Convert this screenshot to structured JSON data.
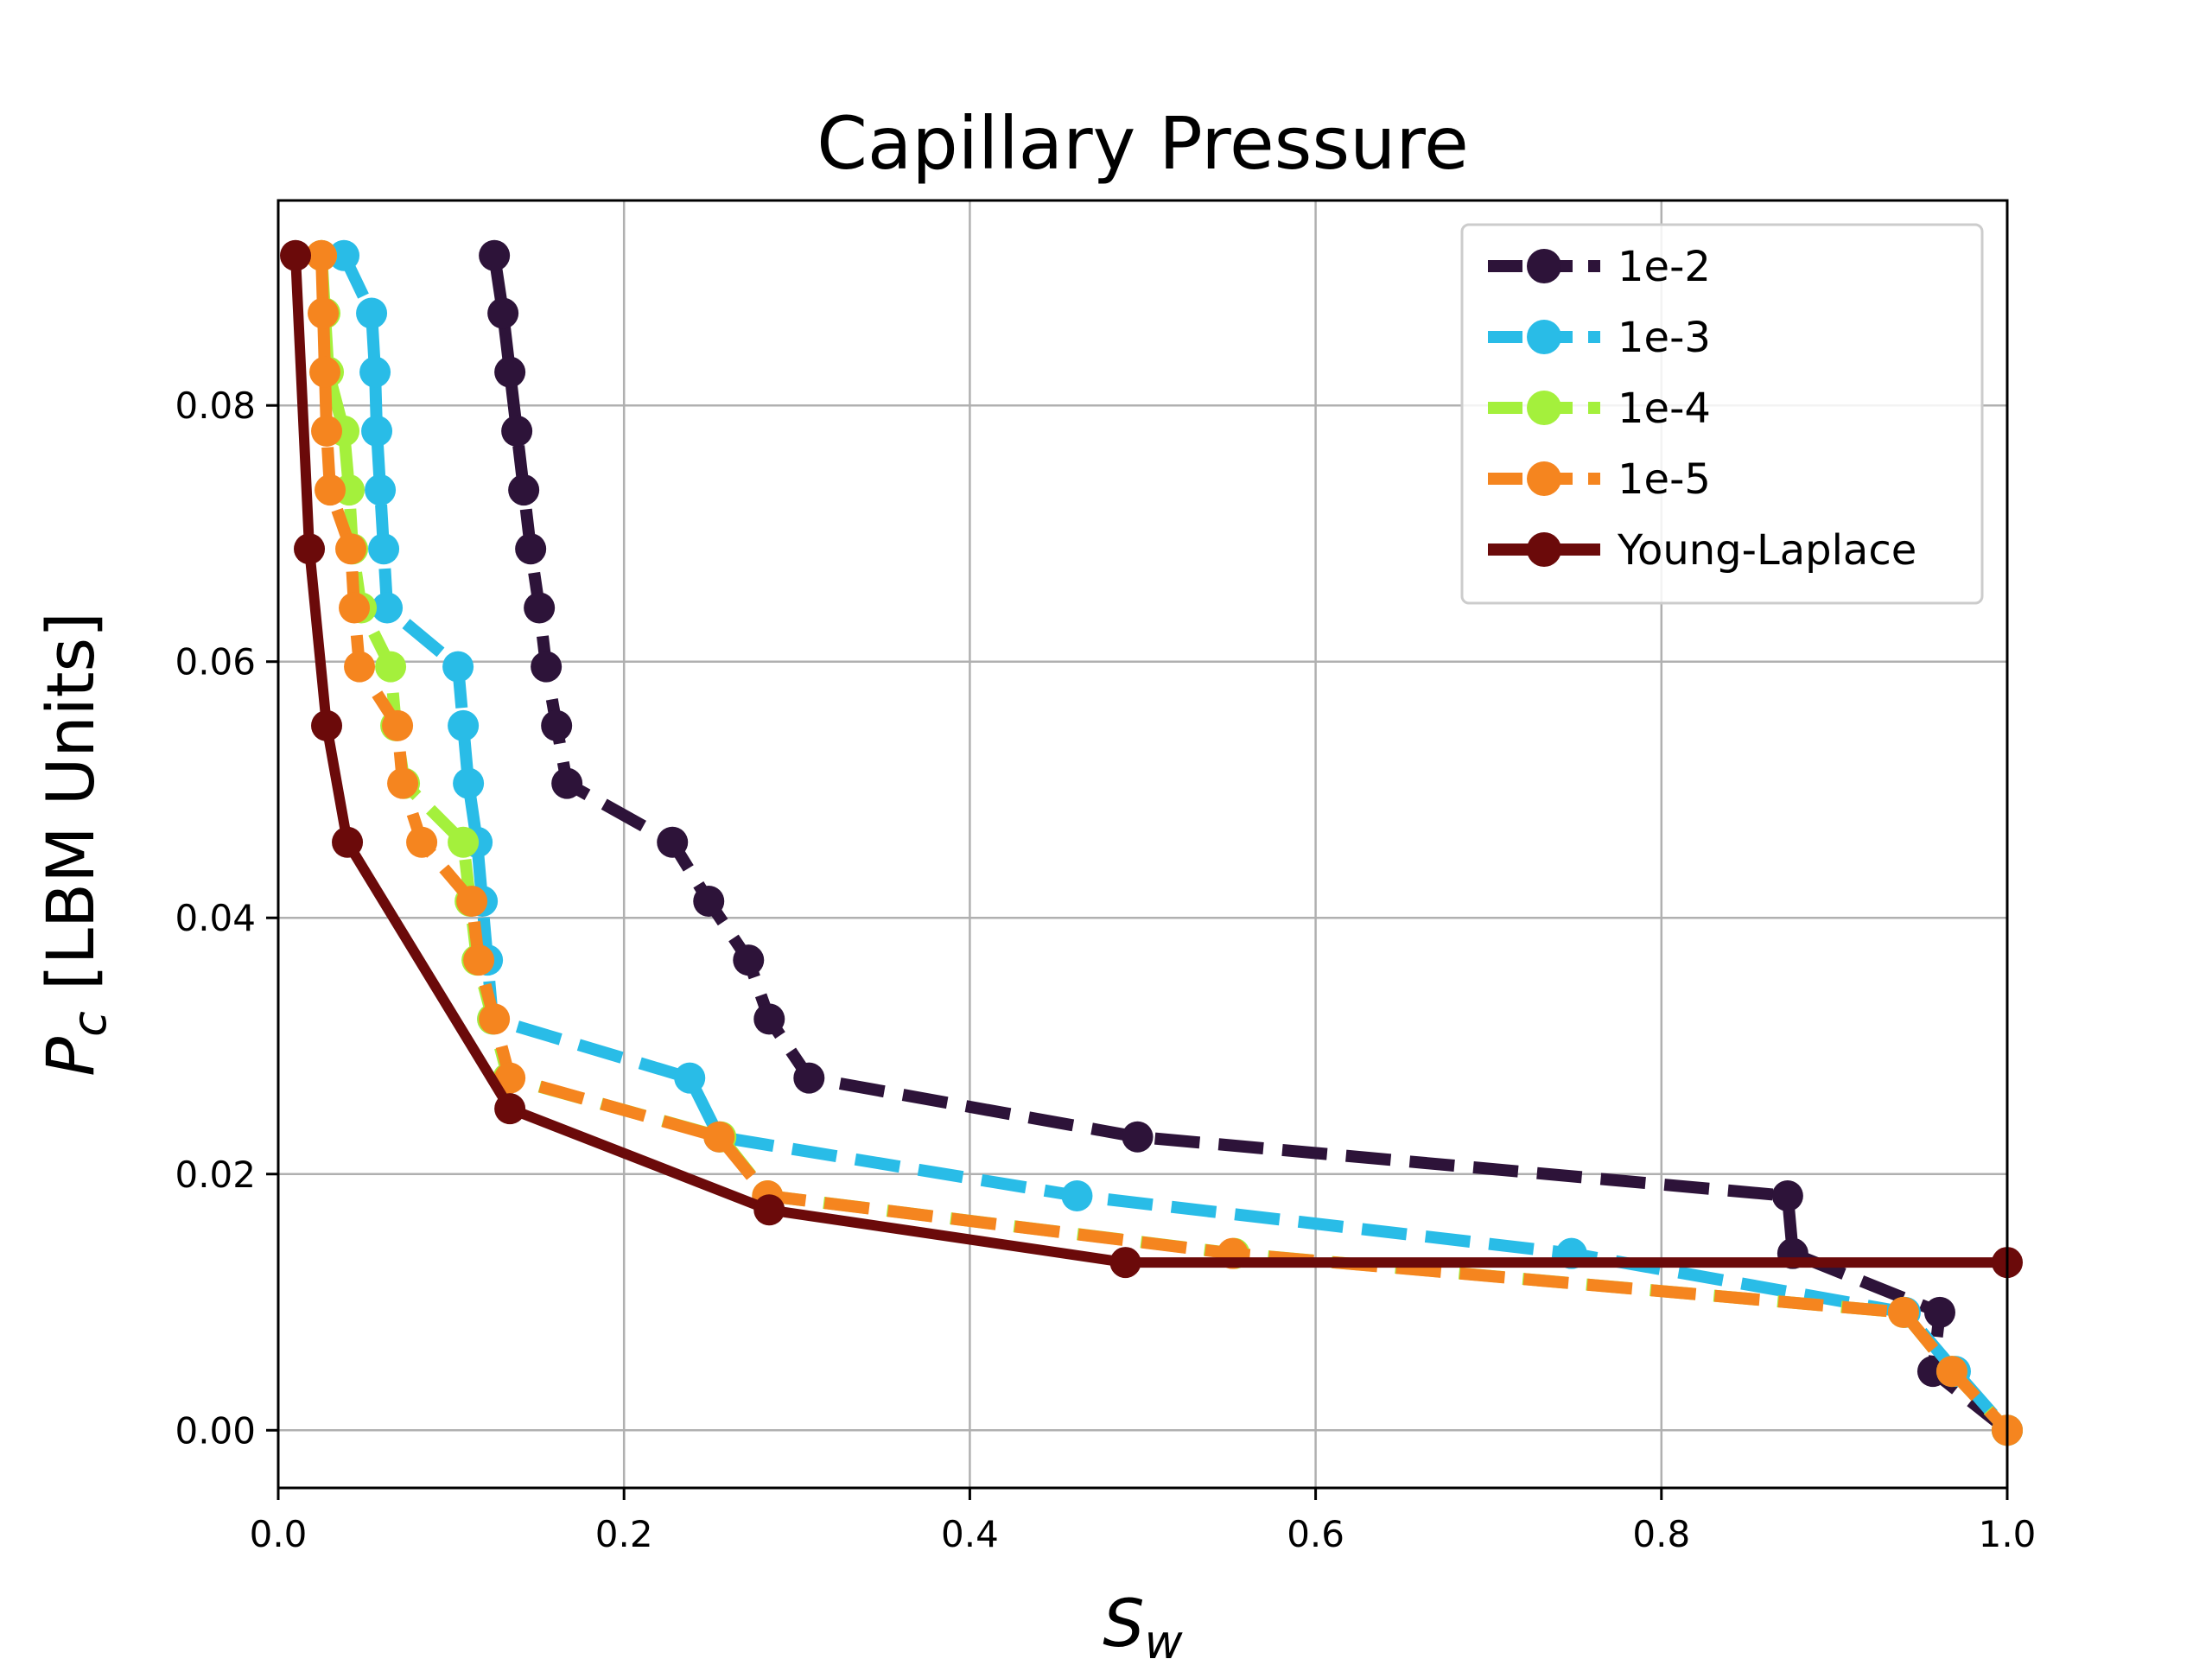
{
  "chart_data": {
    "type": "line",
    "title": "Capillary Pressure",
    "xlabel_main": "S",
    "xlabel_sub": "w",
    "ylabel_main": "P",
    "ylabel_sub": "c",
    "ylabel_rest": " [LBM Units]",
    "xlim": [
      0.0,
      1.0
    ],
    "ylim": [
      -0.0045,
      0.096
    ],
    "xticks": [
      0.0,
      0.2,
      0.4,
      0.6,
      0.8,
      1.0
    ],
    "xtick_labels": [
      "0.0",
      "0.2",
      "0.4",
      "0.6",
      "0.8",
      "1.0"
    ],
    "yticks": [
      0.0,
      0.02,
      0.04,
      0.06,
      0.08
    ],
    "ytick_labels": [
      "0.00",
      "0.02",
      "0.04",
      "0.06",
      "0.08"
    ],
    "grid": true,
    "legend_position": "top-right",
    "series": [
      {
        "name": "1e-2",
        "color": "#2d1339",
        "style": "dashed",
        "points": [
          [
            0.125,
            0.0917
          ],
          [
            0.13,
            0.0872
          ],
          [
            0.134,
            0.0826
          ],
          [
            0.138,
            0.078
          ],
          [
            0.142,
            0.0734
          ],
          [
            0.146,
            0.0688
          ],
          [
            0.151,
            0.0642
          ],
          [
            0.155,
            0.0596
          ],
          [
            0.161,
            0.055
          ],
          [
            0.167,
            0.0505
          ],
          [
            0.228,
            0.0459
          ],
          [
            0.249,
            0.0413
          ],
          [
            0.272,
            0.0367
          ],
          [
            0.284,
            0.0321
          ],
          [
            0.307,
            0.0275
          ],
          [
            0.497,
            0.0229
          ],
          [
            0.873,
            0.0183
          ],
          [
            0.876,
            0.0138
          ],
          [
            0.961,
            0.0092
          ],
          [
            0.957,
            0.0046
          ],
          [
            1.0,
            0.0
          ]
        ]
      },
      {
        "name": "1e-3",
        "color": "#29bce7",
        "style": "dashed",
        "points": [
          [
            0.038,
            0.0917
          ],
          [
            0.054,
            0.0872
          ],
          [
            0.056,
            0.0826
          ],
          [
            0.057,
            0.078
          ],
          [
            0.059,
            0.0734
          ],
          [
            0.061,
            0.0688
          ],
          [
            0.063,
            0.0642
          ],
          [
            0.104,
            0.0596
          ],
          [
            0.107,
            0.055
          ],
          [
            0.11,
            0.0505
          ],
          [
            0.115,
            0.0459
          ],
          [
            0.118,
            0.0413
          ],
          [
            0.121,
            0.0367
          ],
          [
            0.124,
            0.0321
          ],
          [
            0.238,
            0.0275
          ],
          [
            0.255,
            0.0229
          ],
          [
            0.462,
            0.0183
          ],
          [
            0.748,
            0.0138
          ],
          [
            0.941,
            0.0092
          ],
          [
            0.97,
            0.0046
          ],
          [
            1.0,
            0.0
          ]
        ]
      },
      {
        "name": "1e-4",
        "color": "#a4f03c",
        "style": "dashed",
        "points": [
          [
            0.025,
            0.0917
          ],
          [
            0.027,
            0.0872
          ],
          [
            0.029,
            0.0826
          ],
          [
            0.038,
            0.078
          ],
          [
            0.041,
            0.0734
          ],
          [
            0.043,
            0.0688
          ],
          [
            0.048,
            0.0642
          ],
          [
            0.065,
            0.0596
          ],
          [
            0.068,
            0.055
          ],
          [
            0.073,
            0.0505
          ],
          [
            0.107,
            0.0459
          ],
          [
            0.111,
            0.0413
          ],
          [
            0.115,
            0.0367
          ],
          [
            0.124,
            0.0321
          ],
          [
            0.133,
            0.0275
          ],
          [
            0.256,
            0.0229
          ],
          [
            0.283,
            0.0183
          ],
          [
            0.553,
            0.0138
          ],
          [
            0.94,
            0.0092
          ],
          [
            0.968,
            0.0046
          ],
          [
            1.0,
            0.0
          ]
        ]
      },
      {
        "name": "1e-5",
        "color": "#f5851f",
        "style": "dashed",
        "points": [
          [
            0.025,
            0.0917
          ],
          [
            0.026,
            0.0872
          ],
          [
            0.027,
            0.0826
          ],
          [
            0.028,
            0.078
          ],
          [
            0.03,
            0.0734
          ],
          [
            0.042,
            0.0688
          ],
          [
            0.044,
            0.0642
          ],
          [
            0.047,
            0.0596
          ],
          [
            0.069,
            0.055
          ],
          [
            0.072,
            0.0505
          ],
          [
            0.083,
            0.0459
          ],
          [
            0.112,
            0.0413
          ],
          [
            0.116,
            0.0367
          ],
          [
            0.125,
            0.0321
          ],
          [
            0.134,
            0.0275
          ],
          [
            0.255,
            0.0229
          ],
          [
            0.283,
            0.0183
          ],
          [
            0.552,
            0.0138
          ],
          [
            0.94,
            0.0092
          ],
          [
            0.968,
            0.0046
          ],
          [
            1.0,
            0.0
          ]
        ]
      },
      {
        "name": "Young-Laplace",
        "color": "#6b0a0a",
        "style": "solid",
        "points": [
          [
            0.01,
            0.0917
          ],
          [
            0.018,
            0.0688
          ],
          [
            0.028,
            0.055
          ],
          [
            0.04,
            0.0459
          ],
          [
            0.134,
            0.0251
          ],
          [
            0.284,
            0.0172
          ],
          [
            0.49,
            0.0131
          ],
          [
            1.0,
            0.0131
          ]
        ]
      }
    ]
  }
}
